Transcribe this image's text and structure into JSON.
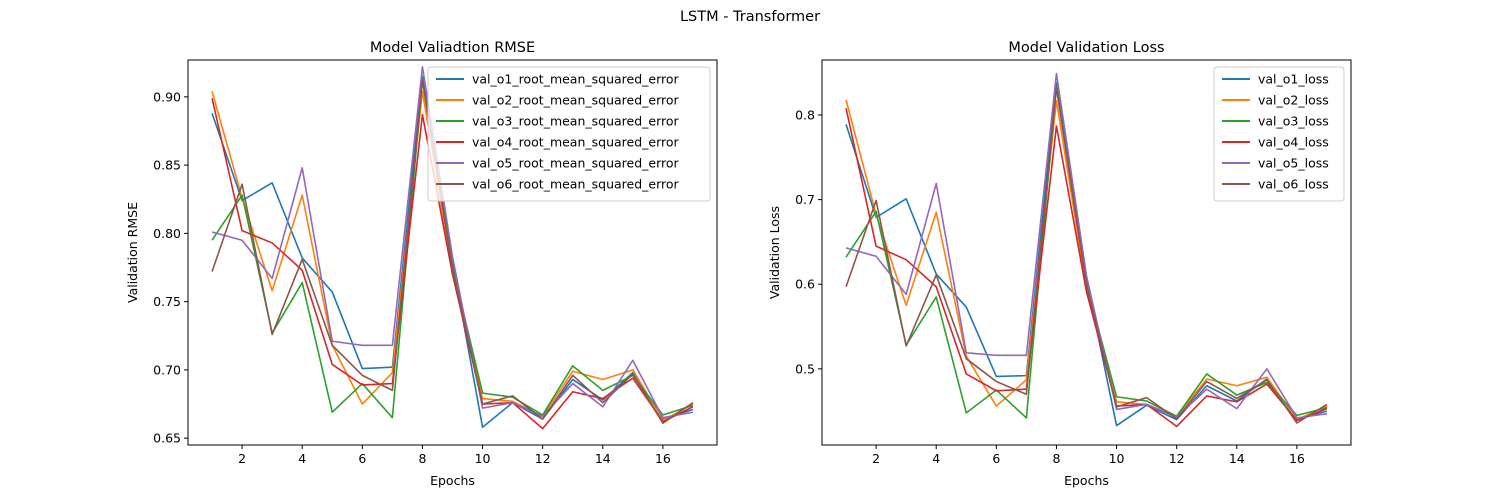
{
  "figure": {
    "suptitle": "LSTM - Transformer"
  },
  "chart_data": [
    {
      "type": "line",
      "title": "Model Valiadtion RMSE",
      "xlabel": "Epochs",
      "ylabel": "Validation RMSE",
      "xlim": [
        0.2,
        17.8
      ],
      "ylim": [
        0.645,
        0.927
      ],
      "xticks": [
        2,
        4,
        6,
        8,
        10,
        12,
        14,
        16
      ],
      "yticks": [
        0.65,
        0.7,
        0.75,
        0.8,
        0.85,
        0.9
      ],
      "ytick_labels": [
        "0.65",
        "0.70",
        "0.75",
        "0.80",
        "0.85",
        "0.90"
      ],
      "legend": "top-right",
      "x": [
        1,
        2,
        3,
        4,
        5,
        6,
        7,
        8,
        9,
        10,
        11,
        12,
        13,
        14,
        15,
        16,
        17
      ],
      "series": [
        {
          "name": "val_o1_root_mean_squared_error",
          "color": "#1f77b4",
          "values": [
            0.888,
            0.824,
            0.837,
            0.782,
            0.757,
            0.701,
            0.702,
            0.915,
            0.779,
            0.658,
            0.676,
            0.664,
            0.693,
            0.678,
            0.698,
            0.664,
            0.671
          ]
        },
        {
          "name": "val_o2_root_mean_squared_error",
          "color": "#ff7f0e",
          "values": [
            0.904,
            0.826,
            0.758,
            0.828,
            0.718,
            0.675,
            0.698,
            0.904,
            0.771,
            0.679,
            0.677,
            0.666,
            0.699,
            0.693,
            0.7,
            0.663,
            0.675
          ]
        },
        {
          "name": "val_o3_root_mean_squared_error",
          "color": "#2ca02c",
          "values": [
            0.795,
            0.828,
            0.727,
            0.764,
            0.669,
            0.69,
            0.665,
            0.913,
            0.776,
            0.683,
            0.68,
            0.667,
            0.703,
            0.685,
            0.696,
            0.667,
            0.674
          ]
        },
        {
          "name": "val_o4_root_mean_squared_error",
          "color": "#d62728",
          "values": [
            0.899,
            0.802,
            0.793,
            0.773,
            0.704,
            0.689,
            0.69,
            0.887,
            0.77,
            0.675,
            0.676,
            0.657,
            0.684,
            0.679,
            0.694,
            0.662,
            0.673
          ]
        },
        {
          "name": "val_o5_root_mean_squared_error",
          "color": "#9467bd",
          "values": [
            0.801,
            0.795,
            0.767,
            0.848,
            0.721,
            0.718,
            0.718,
            0.922,
            0.783,
            0.672,
            0.676,
            0.666,
            0.69,
            0.673,
            0.707,
            0.665,
            0.669
          ]
        },
        {
          "name": "val_o6_root_mean_squared_error",
          "color": "#8c564b",
          "values": [
            0.772,
            0.836,
            0.726,
            0.781,
            0.718,
            0.696,
            0.685,
            0.912,
            0.774,
            0.675,
            0.681,
            0.664,
            0.696,
            0.676,
            0.697,
            0.661,
            0.676
          ]
        }
      ]
    },
    {
      "type": "line",
      "title": "Model Validation Loss",
      "xlabel": "Epochs",
      "ylabel": "Validation Loss",
      "xlim": [
        0.2,
        17.8
      ],
      "ylim": [
        0.41,
        0.865
      ],
      "xticks": [
        2,
        4,
        6,
        8,
        10,
        12,
        14,
        16
      ],
      "yticks": [
        0.5,
        0.6,
        0.7,
        0.8
      ],
      "ytick_labels": [
        "0.5",
        "0.6",
        "0.7",
        "0.8"
      ],
      "legend": "top-right",
      "x": [
        1,
        2,
        3,
        4,
        5,
        6,
        7,
        8,
        9,
        10,
        11,
        12,
        13,
        14,
        15,
        16,
        17
      ],
      "series": [
        {
          "name": "val_o1_loss",
          "color": "#1f77b4",
          "values": [
            0.789,
            0.679,
            0.701,
            0.612,
            0.573,
            0.491,
            0.492,
            0.838,
            0.605,
            0.433,
            0.457,
            0.44,
            0.48,
            0.462,
            0.488,
            0.441,
            0.45
          ]
        },
        {
          "name": "val_o2_loss",
          "color": "#ff7f0e",
          "values": [
            0.818,
            0.682,
            0.575,
            0.685,
            0.515,
            0.456,
            0.487,
            0.817,
            0.594,
            0.461,
            0.458,
            0.444,
            0.488,
            0.48,
            0.49,
            0.44,
            0.456
          ]
        },
        {
          "name": "val_o3_loss",
          "color": "#2ca02c",
          "values": [
            0.632,
            0.686,
            0.528,
            0.585,
            0.448,
            0.475,
            0.442,
            0.834,
            0.6,
            0.467,
            0.462,
            0.444,
            0.494,
            0.469,
            0.484,
            0.445,
            0.454
          ]
        },
        {
          "name": "val_o4_loss",
          "color": "#d62728",
          "values": [
            0.808,
            0.645,
            0.629,
            0.597,
            0.494,
            0.474,
            0.476,
            0.787,
            0.591,
            0.456,
            0.458,
            0.432,
            0.468,
            0.461,
            0.482,
            0.439,
            0.453
          ]
        },
        {
          "name": "val_o5_loss",
          "color": "#9467bd",
          "values": [
            0.643,
            0.633,
            0.588,
            0.719,
            0.519,
            0.516,
            0.516,
            0.849,
            0.61,
            0.452,
            0.458,
            0.443,
            0.476,
            0.453,
            0.5,
            0.442,
            0.447
          ]
        },
        {
          "name": "val_o6_loss",
          "color": "#8c564b",
          "values": [
            0.597,
            0.699,
            0.527,
            0.611,
            0.512,
            0.485,
            0.47,
            0.832,
            0.599,
            0.455,
            0.466,
            0.441,
            0.485,
            0.465,
            0.487,
            0.436,
            0.458
          ]
        }
      ]
    }
  ]
}
